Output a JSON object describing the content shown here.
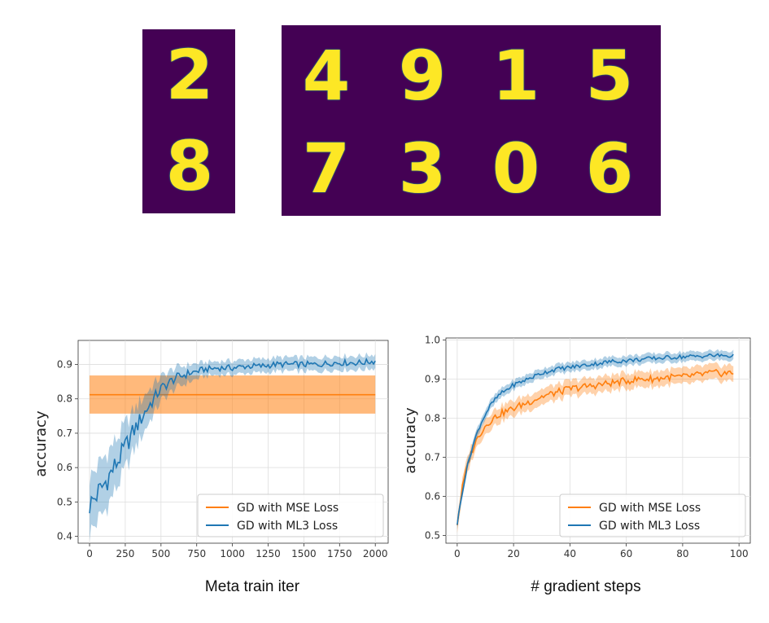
{
  "mnist": {
    "support": [
      "2",
      "8"
    ],
    "query_top": [
      "4",
      "9",
      "1",
      "5"
    ],
    "query_bottom": [
      "7",
      "3",
      "0",
      "6"
    ],
    "colors": {
      "background": "#440154",
      "digit": "#fde725",
      "edge": "#21918c"
    }
  },
  "chart_data": [
    {
      "type": "line",
      "xlabel": "Meta train iter",
      "ylabel": "accuracy",
      "xlim": [
        -80,
        2090
      ],
      "ylim": [
        0.38,
        0.97
      ],
      "xticks": [
        0,
        250,
        500,
        750,
        1000,
        1250,
        1500,
        1750,
        2000
      ],
      "yticks": [
        0.4,
        0.5,
        0.6,
        0.7,
        0.8,
        0.9
      ],
      "grid": true,
      "legend_position": "lower-right",
      "series": [
        {
          "name": "GD with MSE Loss",
          "color": "#ff7f0e",
          "x": [
            0,
            2000
          ],
          "y": [
            0.812,
            0.812
          ],
          "band": [
            0.757,
            0.868
          ]
        },
        {
          "name": "GD with ML3 Loss",
          "color": "#1f77b4",
          "x": [
            0,
            100,
            200,
            300,
            400,
            500,
            600,
            700,
            800,
            900,
            1000,
            1100,
            1200,
            1300,
            1400,
            1500,
            1600,
            1700,
            1800,
            1900,
            2000
          ],
          "y": [
            0.49,
            0.55,
            0.62,
            0.7,
            0.77,
            0.83,
            0.86,
            0.875,
            0.885,
            0.89,
            0.89,
            0.895,
            0.895,
            0.9,
            0.9,
            0.9,
            0.9,
            0.905,
            0.905,
            0.905,
            0.91
          ],
          "band_width": [
            0.08,
            0.08,
            0.07,
            0.06,
            0.05,
            0.035,
            0.03,
            0.025,
            0.02,
            0.02,
            0.02,
            0.02,
            0.02,
            0.02,
            0.02,
            0.02,
            0.02,
            0.02,
            0.02,
            0.02,
            0.02
          ]
        }
      ]
    },
    {
      "type": "line",
      "xlabel": "# gradient steps",
      "ylabel": "accuracy",
      "xlim": [
        -4,
        104
      ],
      "ylim": [
        0.48,
        1.005
      ],
      "xticks": [
        0,
        20,
        40,
        60,
        80,
        100
      ],
      "yticks": [
        0.5,
        0.6,
        0.7,
        0.8,
        0.9,
        1.0
      ],
      "grid": true,
      "legend_position": "lower-right",
      "series": [
        {
          "name": "GD with MSE Loss",
          "color": "#ff7f0e",
          "x": [
            0,
            2,
            4,
            6,
            8,
            10,
            12,
            15,
            20,
            25,
            30,
            35,
            40,
            45,
            50,
            55,
            60,
            65,
            70,
            75,
            80,
            85,
            90,
            95,
            98
          ],
          "y": [
            0.53,
            0.63,
            0.69,
            0.73,
            0.76,
            0.78,
            0.795,
            0.81,
            0.825,
            0.84,
            0.855,
            0.865,
            0.875,
            0.88,
            0.885,
            0.89,
            0.895,
            0.9,
            0.9,
            0.905,
            0.905,
            0.91,
            0.915,
            0.915,
            0.915
          ],
          "band_width": 0.02
        },
        {
          "name": "GD with ML3 Loss",
          "color": "#1f77b4",
          "x": [
            0,
            2,
            4,
            6,
            8,
            10,
            12,
            15,
            20,
            25,
            30,
            35,
            40,
            45,
            50,
            55,
            60,
            65,
            70,
            75,
            80,
            85,
            90,
            95,
            98
          ],
          "y": [
            0.53,
            0.62,
            0.69,
            0.74,
            0.78,
            0.81,
            0.835,
            0.86,
            0.885,
            0.9,
            0.915,
            0.925,
            0.93,
            0.935,
            0.94,
            0.945,
            0.947,
            0.95,
            0.953,
            0.955,
            0.957,
            0.958,
            0.96,
            0.96,
            0.958
          ],
          "band_width": 0.012
        }
      ]
    }
  ]
}
